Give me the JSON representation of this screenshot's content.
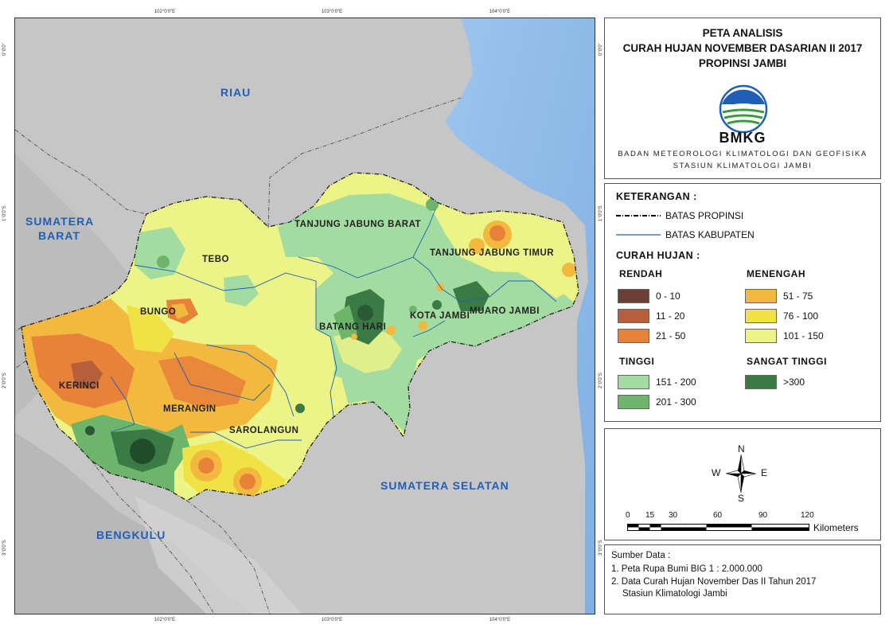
{
  "title": {
    "line1": "PETA ANALISIS",
    "line2": "CURAH HUJAN NOVEMBER DASARIAN II 2017",
    "line3": "PROPINSI JAMBI"
  },
  "agency": {
    "logo_text": "BMKG",
    "name_line1": "BADAN METEOROLOGI KLIMATOLOGI DAN GEOFISIKA",
    "name_line2": "STASIUN KLIMATOLOGI JAMBI"
  },
  "legend": {
    "heading": "KETERANGAN :",
    "boundaries": [
      {
        "label": "BATAS PROPINSI",
        "style": "dash-dot",
        "color": "#000000"
      },
      {
        "label": "BATAS KABUPATEN",
        "style": "solid",
        "color": "#1f5fb8"
      }
    ],
    "rainfall_heading": "CURAH HUJAN :",
    "groups": [
      {
        "name": "RENDAH",
        "classes": [
          {
            "label": "0 - 10",
            "color": "#6b3f33"
          },
          {
            "label": "11 - 20",
            "color": "#b5603a"
          },
          {
            "label": "21 - 50",
            "color": "#e8823a"
          }
        ]
      },
      {
        "name": "MENENGAH",
        "classes": [
          {
            "label": "51 - 75",
            "color": "#f2b93e"
          },
          {
            "label": "76 - 100",
            "color": "#f0e245"
          },
          {
            "label": "101 - 150",
            "color": "#ecf487"
          }
        ]
      },
      {
        "name": "TINGGI",
        "classes": [
          {
            "label": "151 - 200",
            "color": "#a3dca0"
          },
          {
            "label": "201 - 300",
            "color": "#6db56b"
          }
        ]
      },
      {
        "name": "SANGAT TINGGI",
        "classes": [
          {
            "label": ">300",
            "color": "#3c7a45"
          }
        ]
      }
    ]
  },
  "compass": {
    "n": "N",
    "s": "S",
    "e": "E",
    "w": "W"
  },
  "scale_bar": {
    "ticks": [
      "0",
      "15",
      "30",
      "60",
      "90",
      "120"
    ],
    "unit": "Kilometers"
  },
  "source": {
    "heading": "Sumber Data :",
    "items": [
      "1. Peta Rupa Bumi BIG 1 : 2.000.000",
      "2. Data Curah Hujan November Das II Tahun 2017",
      "Stasiun Klimatologi Jambi"
    ]
  },
  "map": {
    "neighbors": [
      "RIAU",
      "SUMATERA BARAT",
      "SUMATERA SELATAN",
      "BENGKULU"
    ],
    "neighbor_lines": {
      "sumbar_1": "SUMATERA",
      "sumbar_2": "BARAT"
    },
    "regencies": [
      "TANJUNG JABUNG BARAT",
      "TANJUNG JABUNG TIMUR",
      "TEBO",
      "BUNGO",
      "BATANG HARI",
      "KOTA JAMBI",
      "MUARO JAMBI",
      "KERINCI",
      "MERANGIN",
      "SAROLANGUN"
    ],
    "graticule_lon": [
      "102°0'0\"E",
      "103°0'0\"E",
      "104°0'0\"E"
    ],
    "graticule_lat": [
      "0°0'0\"",
      "1°0'0\"S",
      "2°0'0\"S",
      "3°0'0\"S"
    ],
    "colors": {
      "sea": "#8fbbe8",
      "land": "#c8c8c8",
      "label": "#1f5fb8"
    }
  }
}
